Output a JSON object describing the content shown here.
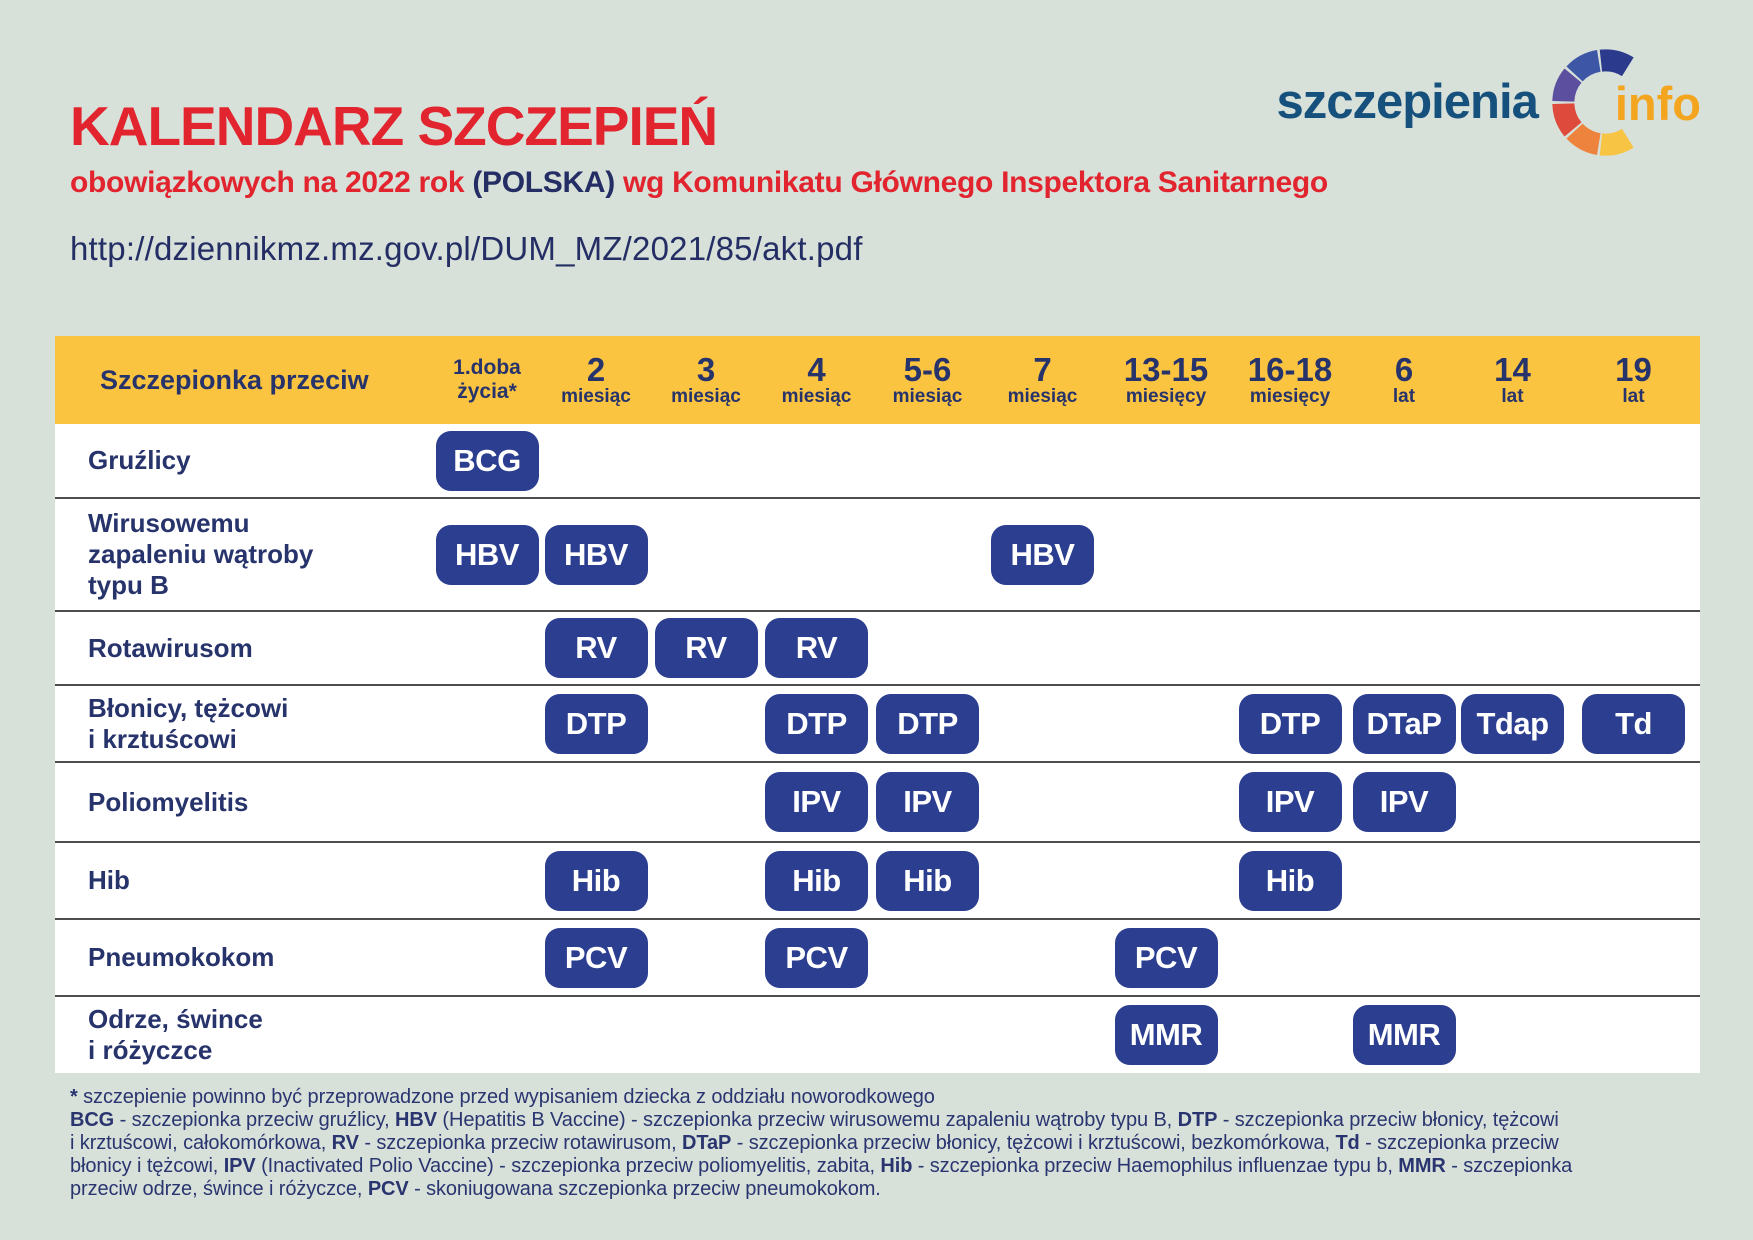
{
  "header": {
    "title": "KALENDARZ SZCZEPIEŃ",
    "subtitle_part1": "obowiązkowych na 2022 rok ",
    "subtitle_country": "(POLSKA)",
    "subtitle_part2": " wg Komunikatu Głównego Inspektora Sanitarnego",
    "url": "http://dziennikmz.mz.gov.pl/DUM_MZ/2021/85/akt.pdf"
  },
  "logo": {
    "text_main": "szczepienia",
    "text_info": "info",
    "arc_colors": [
      "#2b3a8c",
      "#3d56a6",
      "#5d4f9f",
      "#de4a3c",
      "#ee833d",
      "#f7c444"
    ]
  },
  "colors": {
    "background": "#d7e1da",
    "header_band": "#fbc440",
    "pill_navy": "#2b3e8f",
    "accent_red": "#e2242f",
    "text_navy": "#27336b"
  },
  "table": {
    "header": {
      "label": "Szczepionka przeciw",
      "columns": [
        {
          "line1": "1.doba",
          "line2": "życia*",
          "small": true
        },
        {
          "line1": "2",
          "line2": "miesiąc"
        },
        {
          "line1": "3",
          "line2": "miesiąc"
        },
        {
          "line1": "4",
          "line2": "miesiąc"
        },
        {
          "line1": "5-6",
          "line2": "miesiąc"
        },
        {
          "line1": "7",
          "line2": "miesiąc"
        },
        {
          "line1": "13-15",
          "line2": "miesięcy"
        },
        {
          "line1": "16-18",
          "line2": "miesięcy"
        },
        {
          "line1": "6",
          "line2": "lat"
        },
        {
          "line1": "14",
          "line2": "lat"
        },
        {
          "line1": "19",
          "line2": "lat"
        }
      ]
    },
    "rows": [
      {
        "label": "Gruźlicy",
        "pills": [
          {
            "col": 0,
            "text": "BCG"
          }
        ]
      },
      {
        "label": "Wirusowemu\nzapaleniu wątroby\ntypu B",
        "pills": [
          {
            "col": 0,
            "text": "HBV"
          },
          {
            "col": 1,
            "text": "HBV"
          },
          {
            "col": 5,
            "text": "HBV"
          }
        ]
      },
      {
        "label": "Rotawirusom",
        "pills": [
          {
            "col": 1,
            "text": "RV"
          },
          {
            "col": 2,
            "text": "RV"
          },
          {
            "col": 3,
            "text": "RV"
          }
        ]
      },
      {
        "label": "Błonicy, tężcowi\ni krztuścowi",
        "pills": [
          {
            "col": 1,
            "text": "DTP"
          },
          {
            "col": 3,
            "text": "DTP"
          },
          {
            "col": 4,
            "text": "DTP"
          },
          {
            "col": 7,
            "text": "DTP"
          },
          {
            "col": 8,
            "text": "DTaP"
          },
          {
            "col": 9,
            "text": "Tdap"
          },
          {
            "col": 10,
            "text": "Td"
          }
        ]
      },
      {
        "label": "Poliomyelitis",
        "pills": [
          {
            "col": 3,
            "text": "IPV"
          },
          {
            "col": 4,
            "text": "IPV"
          },
          {
            "col": 7,
            "text": "IPV"
          },
          {
            "col": 8,
            "text": "IPV"
          }
        ]
      },
      {
        "label": "Hib",
        "pills": [
          {
            "col": 1,
            "text": "Hib"
          },
          {
            "col": 3,
            "text": "Hib"
          },
          {
            "col": 4,
            "text": "Hib"
          },
          {
            "col": 7,
            "text": "Hib"
          }
        ]
      },
      {
        "label": "Pneumokokom",
        "pills": [
          {
            "col": 1,
            "text": "PCV"
          },
          {
            "col": 3,
            "text": "PCV"
          },
          {
            "col": 6,
            "text": "PCV"
          }
        ]
      },
      {
        "label": "Odrze, śwince\ni różyczce",
        "pills": [
          {
            "col": 6,
            "text": "MMR"
          },
          {
            "col": 8,
            "text": "MMR"
          }
        ]
      }
    ]
  },
  "footnote": {
    "lines": [
      [
        {
          "bold": true,
          "text": "*"
        },
        {
          "bold": false,
          "text": " szczepienie powinno być przeprowadzone przed wypisaniem dziecka z oddziału noworodkowego"
        }
      ],
      [
        {
          "bold": true,
          "text": "BCG"
        },
        {
          "bold": false,
          "text": " - szczepionka przeciw gruźlicy, "
        },
        {
          "bold": true,
          "text": "HBV"
        },
        {
          "bold": false,
          "text": " (Hepatitis B Vaccine) - szczepionka przeciw wirusowemu zapaleniu wątroby typu B, "
        },
        {
          "bold": true,
          "text": "DTP"
        },
        {
          "bold": false,
          "text": " - szczepionka przeciw błonicy, tężcowi"
        }
      ],
      [
        {
          "bold": false,
          "text": "i krztuścowi, całokomórkowa, "
        },
        {
          "bold": true,
          "text": "RV"
        },
        {
          "bold": false,
          "text": " - szczepionka przeciw rotawirusom, "
        },
        {
          "bold": true,
          "text": "DTaP"
        },
        {
          "bold": false,
          "text": " - szczepionka przeciw błonicy, tężcowi i krztuścowi, bezkomórkowa, "
        },
        {
          "bold": true,
          "text": "Td"
        },
        {
          "bold": false,
          "text": " - szczepionka przeciw"
        }
      ],
      [
        {
          "bold": false,
          "text": "błonicy i tężcowi, "
        },
        {
          "bold": true,
          "text": "IPV"
        },
        {
          "bold": false,
          "text": " (Inactivated Polio Vaccine) - szczepionka przeciw poliomyelitis, zabita, "
        },
        {
          "bold": true,
          "text": "Hib"
        },
        {
          "bold": false,
          "text": " - szczepionka przeciw Haemophilus influenzae typu b, "
        },
        {
          "bold": true,
          "text": "MMR"
        },
        {
          "bold": false,
          "text": " - szczepionka"
        }
      ],
      [
        {
          "bold": false,
          "text": "przeciw odrze, śwince i różyczce, "
        },
        {
          "bold": true,
          "text": "PCV"
        },
        {
          "bold": false,
          "text": " - skoniugowana szczepionka przeciw pneumokokom."
        }
      ]
    ]
  }
}
